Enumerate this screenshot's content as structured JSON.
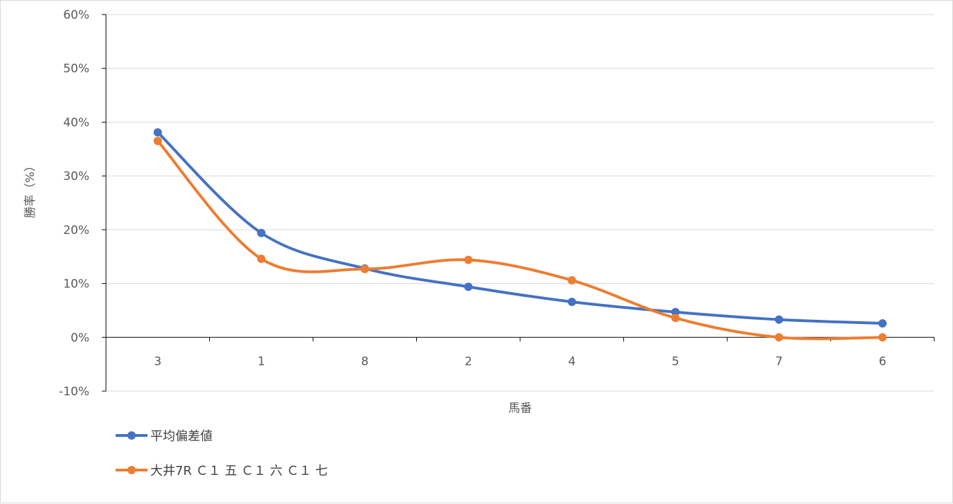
{
  "chart_data": {
    "type": "line",
    "title": "",
    "xlabel": "馬番",
    "ylabel": "勝率（%）",
    "categories": [
      "3",
      "1",
      "8",
      "2",
      "4",
      "5",
      "7",
      "6"
    ],
    "ylim": [
      -10,
      60
    ],
    "yticks": [
      -10,
      0,
      10,
      20,
      30,
      40,
      50,
      60
    ],
    "ytick_labels": [
      "-10%",
      "0%",
      "10%",
      "20%",
      "30%",
      "40%",
      "50%",
      "60%"
    ],
    "grid": true,
    "smooth": true,
    "legend_position": "bottom-left",
    "series": [
      {
        "name": "平均偏差値",
        "color": "#4472C4",
        "values": [
          38.1,
          19.4,
          12.8,
          9.4,
          6.6,
          4.7,
          3.3,
          2.6
        ]
      },
      {
        "name": "大井7R Ｃ１ 五 Ｃ１ 六 Ｃ１ 七",
        "color": "#ED7D31",
        "values": [
          36.5,
          14.6,
          12.7,
          14.4,
          10.6,
          3.6,
          0.0,
          0.0
        ]
      }
    ]
  }
}
